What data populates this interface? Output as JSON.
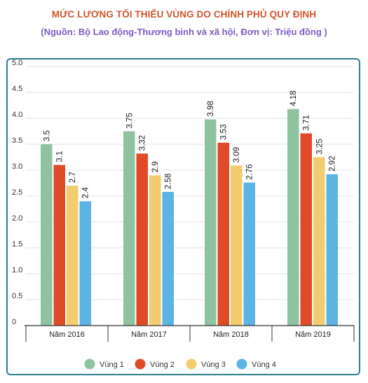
{
  "header": {
    "title": "MỨC LƯƠNG TỐI THIỂU VÙNG DO CHÍNH PHỦ QUY ĐỊNH",
    "subtitle": "(Nguồn: Bộ Lao động-Thương binh và xã hội, Đơn vị: Triệu đồng )"
  },
  "chart_data": {
    "type": "bar",
    "title": "MỨC LƯƠNG TỐI THIỂU VÙNG DO CHÍNH PHỦ QUY ĐỊNH",
    "subtitle": "(Nguồn: Bộ Lao động-Thương binh và xã hội, Đơn vị: Triệu đồng )",
    "categories": [
      "Năm 2016",
      "Năm 2017",
      "Năm 2018",
      "Năm 2019"
    ],
    "series": [
      {
        "name": "Vùng 1",
        "color": "#8fc3a0",
        "values": [
          3.5,
          3.75,
          3.98,
          4.18
        ],
        "labels": [
          "3.5",
          "3.75",
          "3.98",
          "4.18"
        ]
      },
      {
        "name": "Vùng 2",
        "color": "#e04a27",
        "values": [
          3.1,
          3.32,
          3.53,
          3.71
        ],
        "labels": [
          "3.1",
          "3.32",
          "3.53",
          "3.71"
        ]
      },
      {
        "name": "Vùng 3",
        "color": "#f2cc6e",
        "values": [
          2.7,
          2.9,
          3.09,
          3.25
        ],
        "labels": [
          "2.7",
          "2.9",
          "3.09",
          "3.25"
        ]
      },
      {
        "name": "Vùng 4",
        "color": "#5bb4e4",
        "values": [
          2.4,
          2.58,
          2.76,
          2.92
        ],
        "labels": [
          "2.4",
          "2.58",
          "2.76",
          "2.92"
        ]
      }
    ],
    "yticks": [
      "0",
      "0.5",
      "1.0",
      "1.5",
      "2.0",
      "2.5",
      "3.0",
      "3.5",
      "4.0",
      "4.5",
      "5.0"
    ],
    "ylim": [
      0,
      5
    ],
    "grid": true,
    "legend": "bottom",
    "xlabel": "",
    "ylabel": ""
  }
}
